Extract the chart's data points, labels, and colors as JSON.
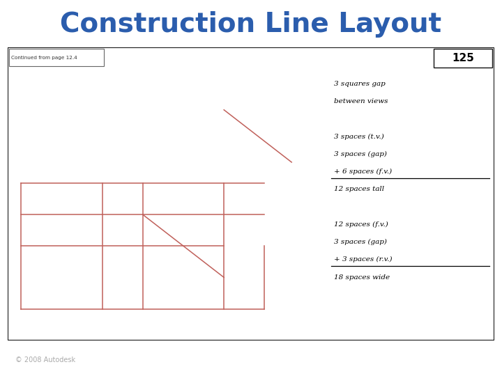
{
  "title": "Construction Line Layout",
  "title_color": "#2B5DAD",
  "title_fontsize": 28,
  "bg_color": "#ffffff",
  "footer_bg": "#1a1a1a",
  "footer_text": "© 2008 Autodesk",
  "footer_logo": "Autodesk",
  "grid_color": "#c8c8c8",
  "grid_lw": 0.4,
  "paper_bg": "#ffffff",
  "paper_border": "#111111",
  "red_line_color": "#c0605a",
  "red_line_lw": 1.1,
  "page_label": "Continued from page 12.4",
  "page_number": "125",
  "annotation_lines": [
    "3 squares gap",
    "between views",
    "",
    "3 spaces (t.v.)",
    "3 spaces (gap)",
    "+ 6 spaces (f.v.)",
    "12 spaces tall",
    "",
    "12 spaces (f.v.)",
    "3 spaces (gap)",
    "+ 3 spaces (r.v.)",
    "18 spaces wide"
  ],
  "underline_indices": [
    5,
    10
  ],
  "grid_cols": 36,
  "grid_rows": 28
}
